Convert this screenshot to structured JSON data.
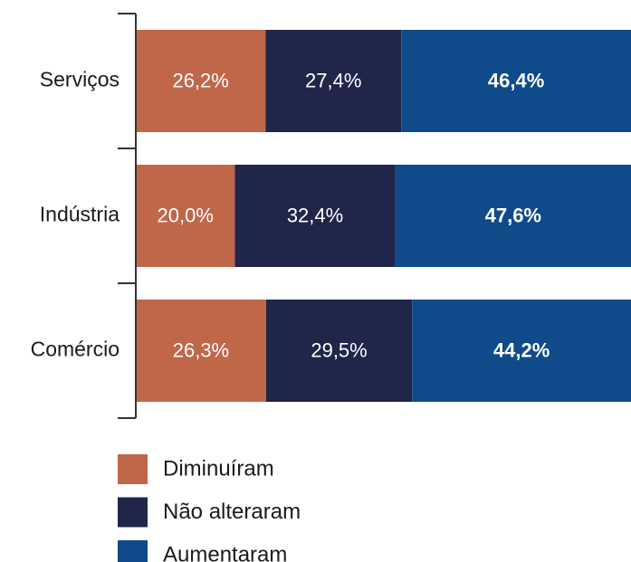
{
  "chart_data": {
    "type": "stacked-bar-horizontal",
    "categories": [
      "Serviços",
      "Indústria",
      "Comércio"
    ],
    "xlim": [
      0,
      100
    ],
    "series": [
      {
        "name": "Diminuíram",
        "color": "#c0674a",
        "values": [
          26.2,
          20.0,
          26.3
        ],
        "value_labels": [
          "26,2%",
          "20,0%",
          "26,3%"
        ]
      },
      {
        "name": "Não alteraram",
        "color": "#20254a",
        "values": [
          27.4,
          32.4,
          29.5
        ],
        "value_labels": [
          "27,4%",
          "32,4%",
          "29,5%"
        ]
      },
      {
        "name": "Aumentaram",
        "color": "#0f4a8a",
        "values": [
          46.4,
          47.6,
          44.2
        ],
        "value_labels": [
          "46,4%",
          "47,6%",
          "44,2%"
        ]
      }
    ]
  }
}
